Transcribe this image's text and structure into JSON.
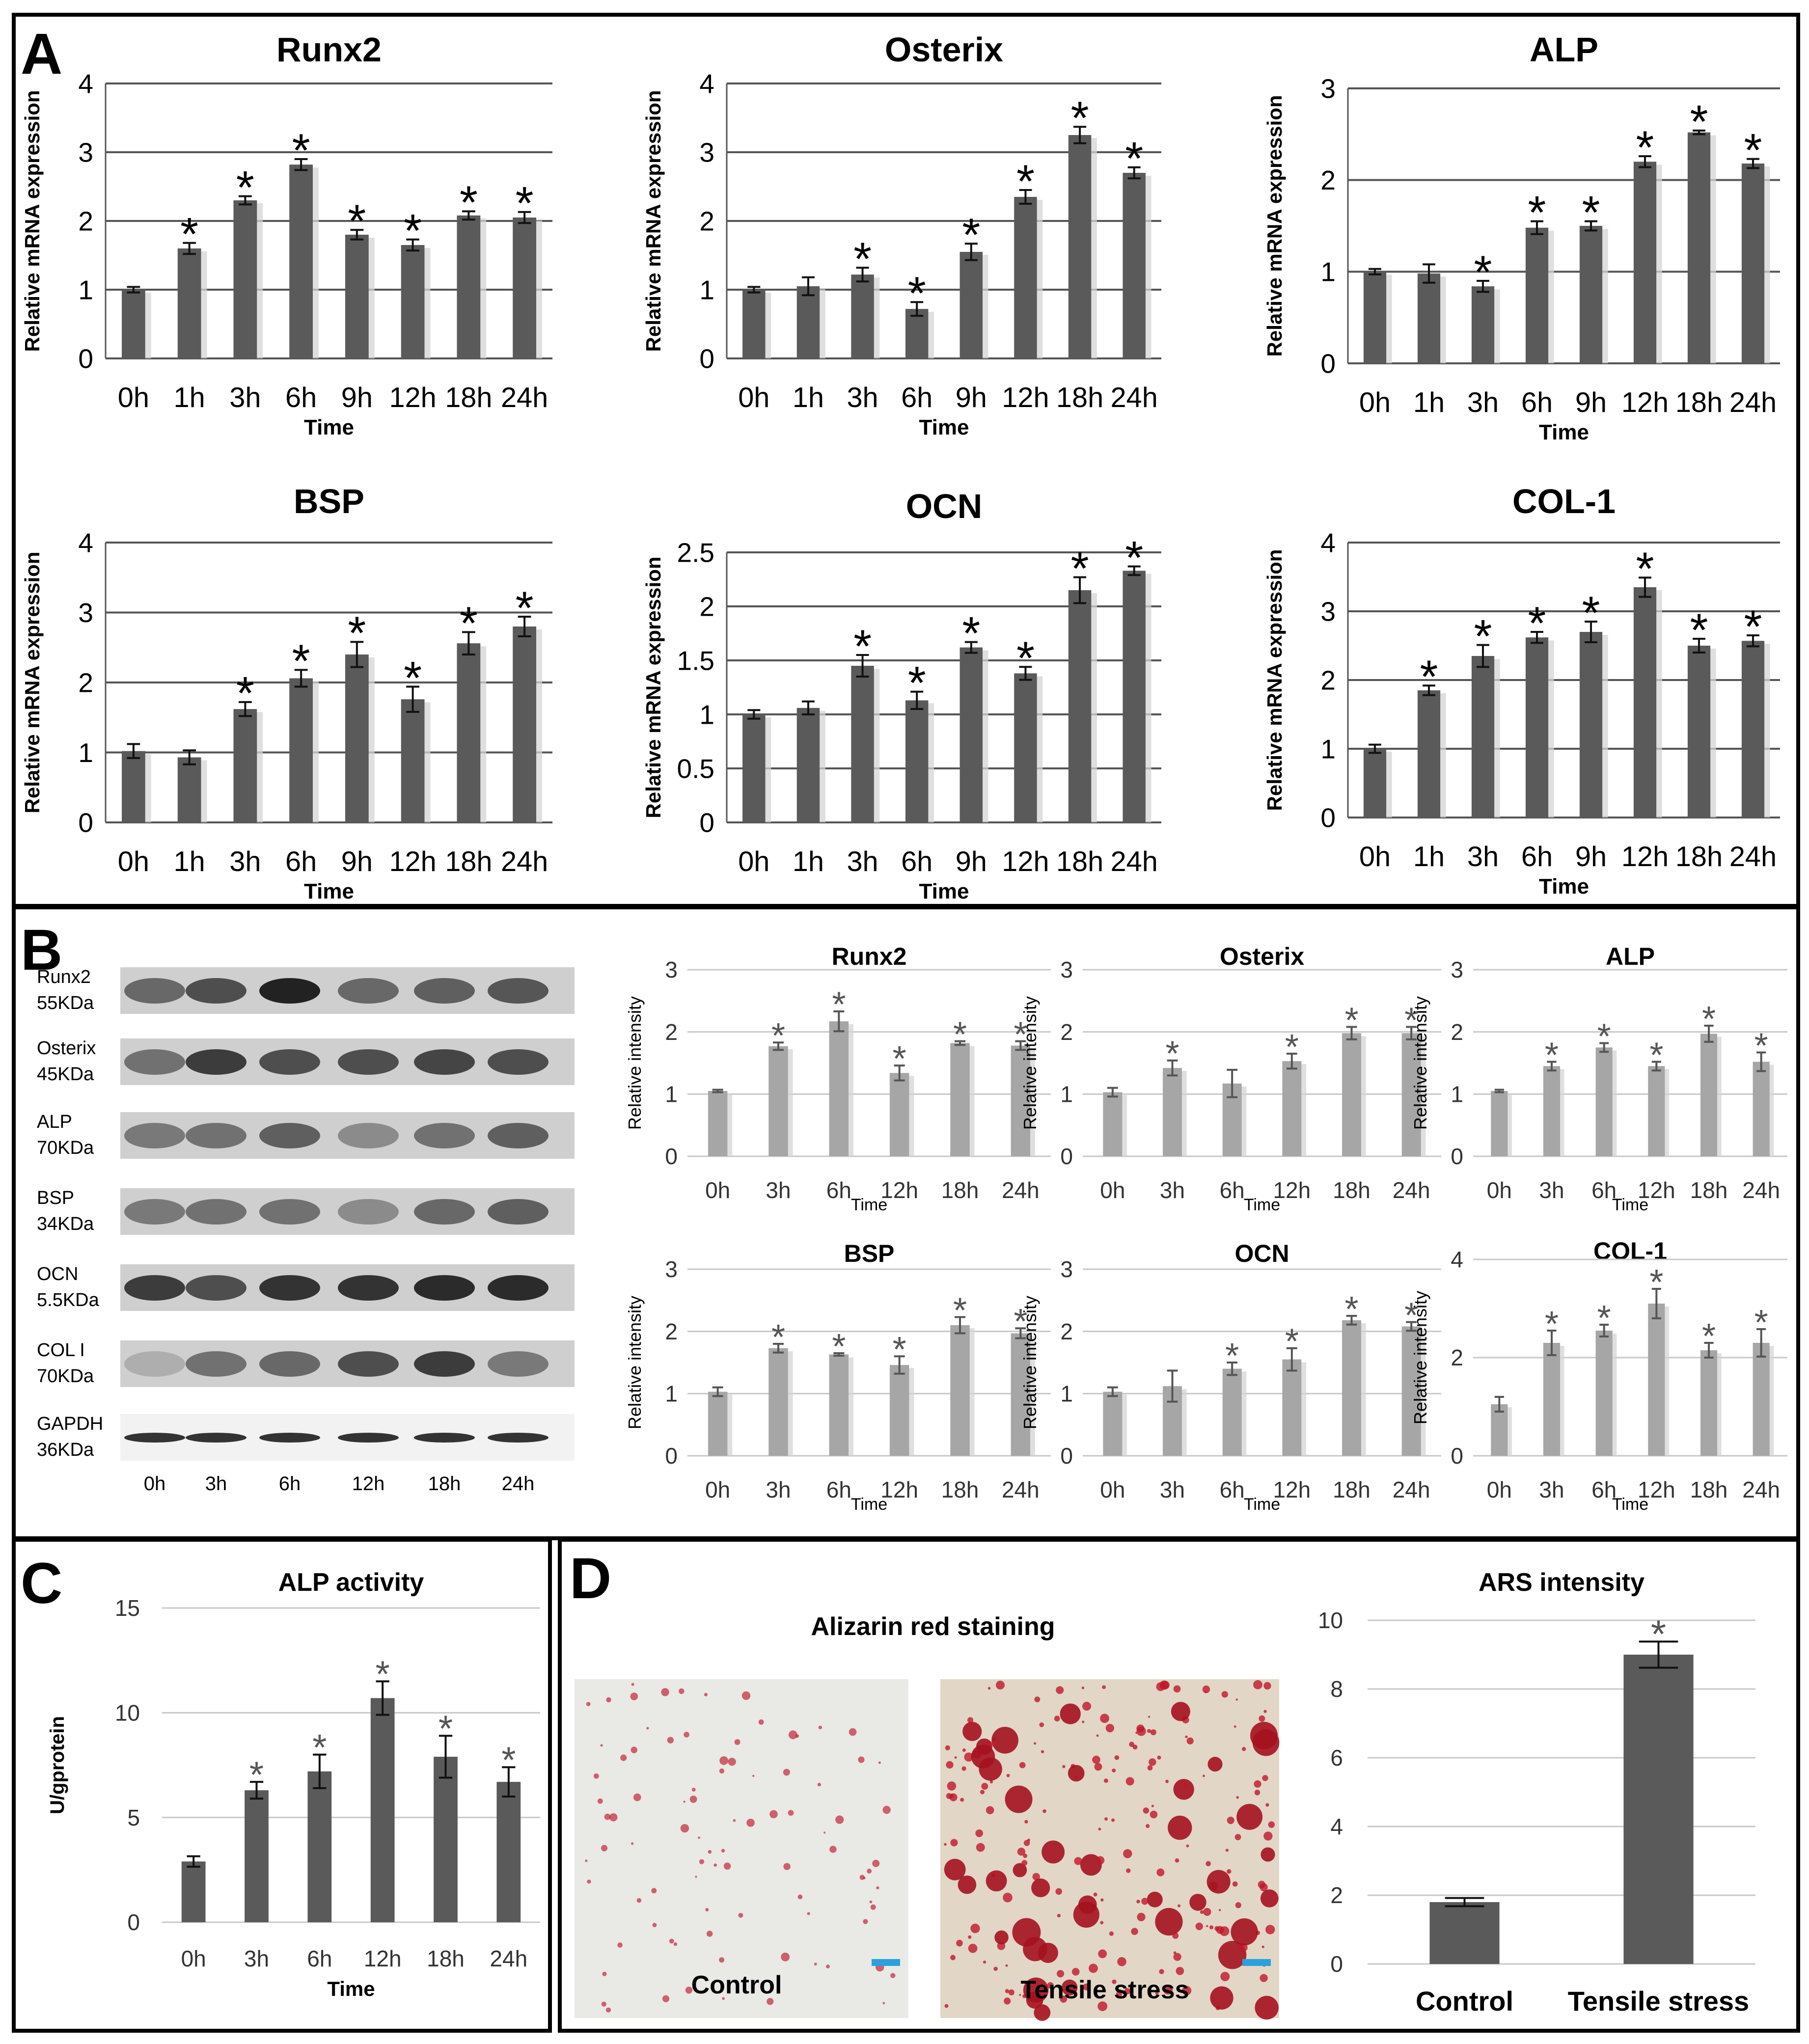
{
  "panels": {
    "A": "A",
    "B": "B",
    "C": "C",
    "D": "D"
  },
  "colors": {
    "dark_bar": "#5a5a5a",
    "light_bar": "#a6a6a6",
    "grid": "#555555",
    "light_grid": "#c8c8c8",
    "border": "#000000",
    "stain_red": "#c0172a",
    "scale_bar": "#2aa1dc"
  },
  "blot": {
    "bands": [
      {
        "label": "Runx2",
        "size": "55KDa"
      },
      {
        "label": "Osterix",
        "size": "45KDa"
      },
      {
        "label": "ALP",
        "size": "70KDa"
      },
      {
        "label": "BSP",
        "size": "34KDa"
      },
      {
        "label": "OCN",
        "size": "5.5KDa"
      },
      {
        "label": "COL I",
        "size": "70KDa"
      },
      {
        "label": "GAPDH",
        "size": "36KDa"
      }
    ],
    "lanes": [
      "0h",
      "3h",
      "6h",
      "12h",
      "18h",
      "24h"
    ]
  },
  "stain": {
    "title": "Alizarin red  staining",
    "control_label": "Control",
    "tensile_label": "Tensile stress"
  },
  "chart_data": [
    {
      "id": "A-Runx2",
      "panel": "A",
      "type": "bar",
      "title": "Runx2",
      "xlabel": "Time",
      "ylabel": "Relative  mRNA expression",
      "categories": [
        "0h",
        "1h",
        "3h",
        "6h",
        "9h",
        "12h",
        "18h",
        "24h"
      ],
      "values": [
        1.0,
        1.6,
        2.3,
        2.82,
        1.8,
        1.65,
        2.08,
        2.05
      ],
      "errors": [
        0.04,
        0.08,
        0.06,
        0.08,
        0.07,
        0.08,
        0.06,
        0.08
      ],
      "significant": [
        false,
        true,
        true,
        true,
        true,
        true,
        true,
        true
      ],
      "ylim": [
        0,
        4
      ],
      "yticks": [
        "0",
        "1",
        "2",
        "3",
        "4"
      ]
    },
    {
      "id": "A-Osterix",
      "panel": "A",
      "type": "bar",
      "title": "Osterix",
      "xlabel": "Time",
      "ylabel": "Relative  mRNA expression",
      "categories": [
        "0h",
        "1h",
        "3h",
        "6h",
        "9h",
        "12h",
        "18h",
        "24h"
      ],
      "values": [
        1.0,
        1.05,
        1.22,
        0.72,
        1.55,
        2.35,
        3.25,
        2.7
      ],
      "errors": [
        0.04,
        0.13,
        0.1,
        0.1,
        0.12,
        0.1,
        0.12,
        0.08
      ],
      "significant": [
        false,
        false,
        true,
        true,
        true,
        true,
        true,
        true
      ],
      "ylim": [
        0,
        4
      ],
      "yticks": [
        "0",
        "1",
        "2",
        "3",
        "4"
      ]
    },
    {
      "id": "A-ALP",
      "panel": "A",
      "type": "bar",
      "title": "ALP",
      "xlabel": "Time",
      "ylabel": "Relative  mRNA expression",
      "categories": [
        "0h",
        "1h",
        "3h",
        "6h",
        "9h",
        "12h",
        "18h",
        "24h"
      ],
      "values": [
        1.0,
        0.98,
        0.84,
        1.48,
        1.5,
        2.2,
        2.52,
        2.18
      ],
      "errors": [
        0.03,
        0.1,
        0.06,
        0.07,
        0.05,
        0.06,
        0.02,
        0.05
      ],
      "significant": [
        false,
        false,
        true,
        true,
        true,
        true,
        true,
        true
      ],
      "ylim": [
        0,
        3
      ],
      "yticks": [
        "0",
        "1",
        "2",
        "3"
      ]
    },
    {
      "id": "A-BSP",
      "panel": "A",
      "type": "bar",
      "title": "BSP",
      "xlabel": "Time",
      "ylabel": "Relative  mRNA expression",
      "categories": [
        "0h",
        "1h",
        "3h",
        "6h",
        "9h",
        "12h",
        "18h",
        "24h"
      ],
      "values": [
        1.02,
        0.93,
        1.62,
        2.06,
        2.4,
        1.76,
        2.56,
        2.8
      ],
      "errors": [
        0.1,
        0.1,
        0.1,
        0.12,
        0.18,
        0.18,
        0.16,
        0.14
      ],
      "significant": [
        false,
        false,
        true,
        true,
        true,
        true,
        true,
        true
      ],
      "ylim": [
        0,
        4
      ],
      "yticks": [
        "0",
        "1",
        "2",
        "3",
        "4"
      ]
    },
    {
      "id": "A-OCN",
      "panel": "A",
      "type": "bar",
      "title": "OCN",
      "xlabel": "Time",
      "ylabel": "Relative  mRNA expression",
      "categories": [
        "0h",
        "1h",
        "3h",
        "6h",
        "9h",
        "12h",
        "18h",
        "24h"
      ],
      "values": [
        1.0,
        1.06,
        1.45,
        1.13,
        1.62,
        1.38,
        2.15,
        2.33
      ],
      "errors": [
        0.04,
        0.06,
        0.1,
        0.08,
        0.05,
        0.06,
        0.12,
        0.04
      ],
      "significant": [
        false,
        false,
        true,
        true,
        true,
        true,
        true,
        true
      ],
      "ylim": [
        0,
        2.5
      ],
      "yticks": [
        "0",
        "0.5",
        "1",
        "1.5",
        "2",
        "2.5"
      ]
    },
    {
      "id": "A-COL1",
      "panel": "A",
      "type": "bar",
      "title": "COL-1",
      "xlabel": "Time",
      "ylabel": "Relative  mRNA expression",
      "categories": [
        "0h",
        "1h",
        "3h",
        "6h",
        "9h",
        "12h",
        "18h",
        "24h"
      ],
      "values": [
        1.0,
        1.85,
        2.35,
        2.62,
        2.7,
        3.35,
        2.5,
        2.57
      ],
      "errors": [
        0.06,
        0.07,
        0.16,
        0.08,
        0.15,
        0.14,
        0.1,
        0.08
      ],
      "significant": [
        false,
        true,
        true,
        true,
        true,
        true,
        true,
        true
      ],
      "ylim": [
        0,
        4
      ],
      "yticks": [
        "0",
        "1",
        "2",
        "3",
        "4"
      ]
    },
    {
      "id": "B-Runx2",
      "panel": "B",
      "type": "bar",
      "title": "Runx2",
      "xlabel": "Time",
      "ylabel": "Relative intensity",
      "categories": [
        "0h",
        "3h",
        "6h",
        "12h",
        "18h",
        "24h"
      ],
      "values": [
        1.05,
        1.77,
        2.17,
        1.34,
        1.82,
        1.78
      ],
      "errors": [
        0.02,
        0.06,
        0.16,
        0.12,
        0.03,
        0.07
      ],
      "significant": [
        false,
        true,
        true,
        true,
        true,
        true
      ],
      "ylim": [
        0,
        3
      ],
      "yticks": [
        "0",
        "1",
        "2",
        "3"
      ]
    },
    {
      "id": "B-Osterix",
      "panel": "B",
      "type": "bar",
      "title": "Osterix",
      "xlabel": "Time",
      "ylabel": "Relative intensity",
      "categories": [
        "0h",
        "3h",
        "6h",
        "12h",
        "18h",
        "24h"
      ],
      "values": [
        1.03,
        1.42,
        1.17,
        1.53,
        1.98,
        1.98
      ],
      "errors": [
        0.07,
        0.12,
        0.22,
        0.12,
        0.1,
        0.1
      ],
      "significant": [
        false,
        true,
        false,
        true,
        true,
        true
      ],
      "ylim": [
        0,
        3
      ],
      "yticks": [
        "0",
        "1",
        "2",
        "3"
      ]
    },
    {
      "id": "B-ALP",
      "panel": "B",
      "type": "bar",
      "title": "ALP",
      "xlabel": "Time",
      "ylabel": "Relative intensity",
      "categories": [
        "0h",
        "3h",
        "6h",
        "12h",
        "18h",
        "24h"
      ],
      "values": [
        1.05,
        1.45,
        1.75,
        1.45,
        1.97,
        1.52
      ],
      "errors": [
        0.02,
        0.07,
        0.07,
        0.07,
        0.13,
        0.15
      ],
      "significant": [
        false,
        true,
        true,
        true,
        true,
        true
      ],
      "ylim": [
        0,
        3
      ],
      "yticks": [
        "0",
        "1",
        "2",
        "3"
      ]
    },
    {
      "id": "B-BSP",
      "panel": "B",
      "type": "bar",
      "title": "BSP",
      "xlabel": "Time",
      "ylabel": "Relative intensity",
      "categories": [
        "0h",
        "3h",
        "6h",
        "12h",
        "18h",
        "24h"
      ],
      "values": [
        1.03,
        1.73,
        1.63,
        1.46,
        2.1,
        1.97
      ],
      "errors": [
        0.07,
        0.07,
        0.02,
        0.14,
        0.13,
        0.08
      ],
      "significant": [
        false,
        true,
        true,
        true,
        true,
        true
      ],
      "ylim": [
        0,
        3
      ],
      "yticks": [
        "0",
        "1",
        "2",
        "3"
      ]
    },
    {
      "id": "B-OCN",
      "panel": "B",
      "type": "bar",
      "title": "OCN",
      "xlabel": "Time",
      "ylabel": "Relative intensity",
      "categories": [
        "0h",
        "3h",
        "6h",
        "12h",
        "18h",
        "24h"
      ],
      "values": [
        1.03,
        1.12,
        1.4,
        1.55,
        2.18,
        2.08
      ],
      "errors": [
        0.07,
        0.25,
        0.1,
        0.18,
        0.07,
        0.07
      ],
      "significant": [
        false,
        false,
        true,
        true,
        true,
        true
      ],
      "ylim": [
        0,
        3
      ],
      "yticks": [
        "0",
        "1",
        "2",
        "3"
      ]
    },
    {
      "id": "B-COL1",
      "panel": "B",
      "type": "bar",
      "title": "COL-1",
      "xlabel": "Time",
      "ylabel": "Relative intensity",
      "categories": [
        "0h",
        "3h",
        "6h",
        "12h",
        "18h",
        "24h"
      ],
      "values": [
        1.05,
        2.3,
        2.55,
        3.1,
        2.15,
        2.3
      ],
      "errors": [
        0.15,
        0.25,
        0.12,
        0.3,
        0.15,
        0.28
      ],
      "significant": [
        false,
        true,
        true,
        true,
        true,
        true
      ],
      "ylim": [
        0,
        4
      ],
      "yticks": [
        "0",
        "2",
        "4"
      ]
    },
    {
      "id": "C-ALP-activity",
      "panel": "C",
      "type": "bar",
      "title": "ALP activity",
      "xlabel": "Time",
      "ylabel": "U/gprotein",
      "categories": [
        "0h",
        "3h",
        "6h",
        "12h",
        "18h",
        "24h"
      ],
      "values": [
        2.9,
        6.3,
        7.2,
        10.7,
        7.9,
        6.7
      ],
      "errors": [
        0.25,
        0.4,
        0.8,
        0.8,
        1.0,
        0.7
      ],
      "significant": [
        false,
        true,
        true,
        true,
        true,
        true
      ],
      "ylim": [
        0,
        15
      ],
      "yticks": [
        "0",
        "5",
        "10",
        "15"
      ]
    },
    {
      "id": "D-ARS",
      "panel": "D",
      "type": "bar",
      "title": "ARS intensity",
      "xlabel": "",
      "ylabel": "",
      "categories": [
        "Control",
        "Tensile stress"
      ],
      "values": [
        1.8,
        9.0
      ],
      "errors": [
        0.12,
        0.38
      ],
      "significant": [
        false,
        true
      ],
      "ylim": [
        0,
        10
      ],
      "yticks": [
        "0",
        "2",
        "4",
        "6",
        "8",
        "10"
      ]
    }
  ]
}
